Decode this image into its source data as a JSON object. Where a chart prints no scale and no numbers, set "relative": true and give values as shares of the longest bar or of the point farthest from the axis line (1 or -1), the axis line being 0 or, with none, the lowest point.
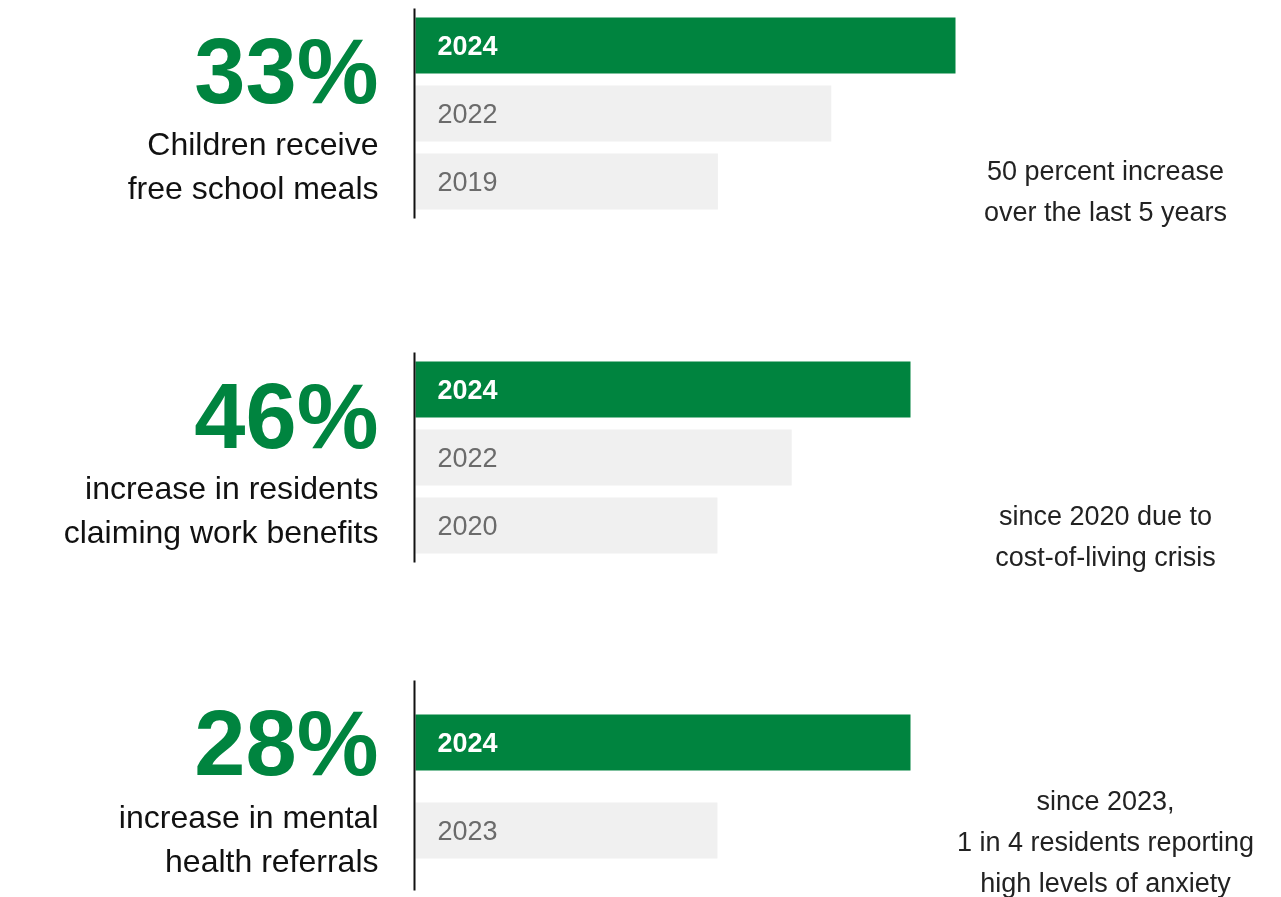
{
  "chart_data": [
    {
      "type": "bar",
      "orientation": "horizontal",
      "relative": true,
      "title": "33%",
      "subtitle": "Children receive\nfree school meals",
      "categories": [
        "2024",
        "2022",
        "2019"
      ],
      "values": [
        1,
        0.77,
        0.56
      ],
      "colors": [
        "#00843f",
        "#f0f0f0",
        "#f0f0f0"
      ],
      "annotations": [
        "50 percent increase",
        "over the last 5 years"
      ]
    },
    {
      "type": "bar",
      "orientation": "horizontal",
      "relative": true,
      "title": "46%",
      "subtitle": "increase in residents\nclaiming work benefits",
      "categories": [
        "2024",
        "2022",
        "2020"
      ],
      "values": [
        1,
        0.76,
        0.61
      ],
      "colors": [
        "#00843f",
        "#f0f0f0",
        "#f0f0f0"
      ],
      "annotations": [
        "since 2020 due to",
        "cost-of-living crisis"
      ]
    },
    {
      "type": "bar",
      "orientation": "horizontal",
      "relative": true,
      "title": "28%",
      "subtitle": "increase in mental\nhealth referrals",
      "categories": [
        "2024",
        "2023"
      ],
      "values": [
        1,
        0.61
      ],
      "colors": [
        "#00843f",
        "#f0f0f0"
      ],
      "annotations": [
        "since 2023,",
        "1 in 4 residents reporting",
        "high levels of anxiety"
      ]
    }
  ]
}
